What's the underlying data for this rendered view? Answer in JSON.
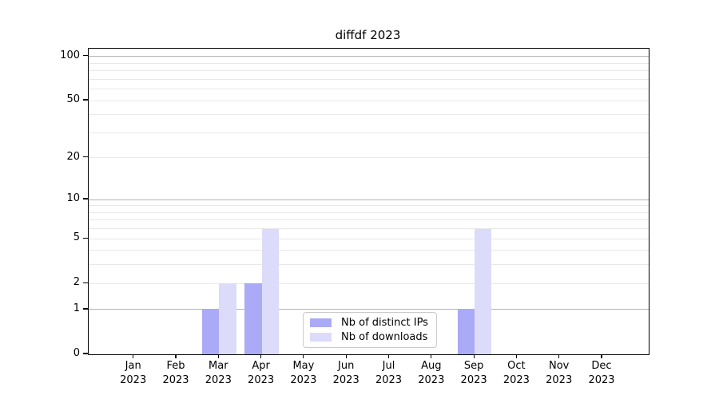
{
  "chart_data": {
    "type": "bar",
    "title": "diffdf 2023",
    "categories": [
      "Jan 2023",
      "Feb 2023",
      "Mar 2023",
      "Apr 2023",
      "May 2023",
      "Jun 2023",
      "Jul 2023",
      "Aug 2023",
      "Sep 2023",
      "Oct 2023",
      "Nov 2023",
      "Dec 2023"
    ],
    "series": [
      {
        "name": "Nb of distinct IPs",
        "color": "#aaaaf7",
        "values": [
          0,
          0,
          1,
          2,
          0,
          0,
          0,
          0,
          1,
          0,
          0,
          0
        ]
      },
      {
        "name": "Nb of downloads",
        "color": "#dcdbfa",
        "values": [
          0,
          0,
          2,
          6,
          0,
          0,
          0,
          0,
          6,
          0,
          0,
          0
        ]
      }
    ],
    "xlabel": "",
    "ylabel": "",
    "y_scale": "log10(1+value)",
    "y_tick_labels": [
      "0",
      "1",
      "2",
      "5",
      "10",
      "20",
      "50",
      "100"
    ],
    "y_tick_values": [
      0,
      1,
      2,
      5,
      10,
      20,
      50,
      100
    ],
    "y_major_gridlines": [
      1,
      10,
      100
    ],
    "y_minor_gridlines": [
      2,
      3,
      4,
      5,
      6,
      7,
      8,
      9,
      20,
      30,
      40,
      50,
      60,
      70,
      80,
      90
    ],
    "ylim": [
      0,
      113
    ],
    "grid": "horizontal",
    "legend_position": "lower-center",
    "colors": {
      "grid_major": "#b3b3b3",
      "grid_minor": "#e8e8e8",
      "spine": "#000000"
    }
  }
}
